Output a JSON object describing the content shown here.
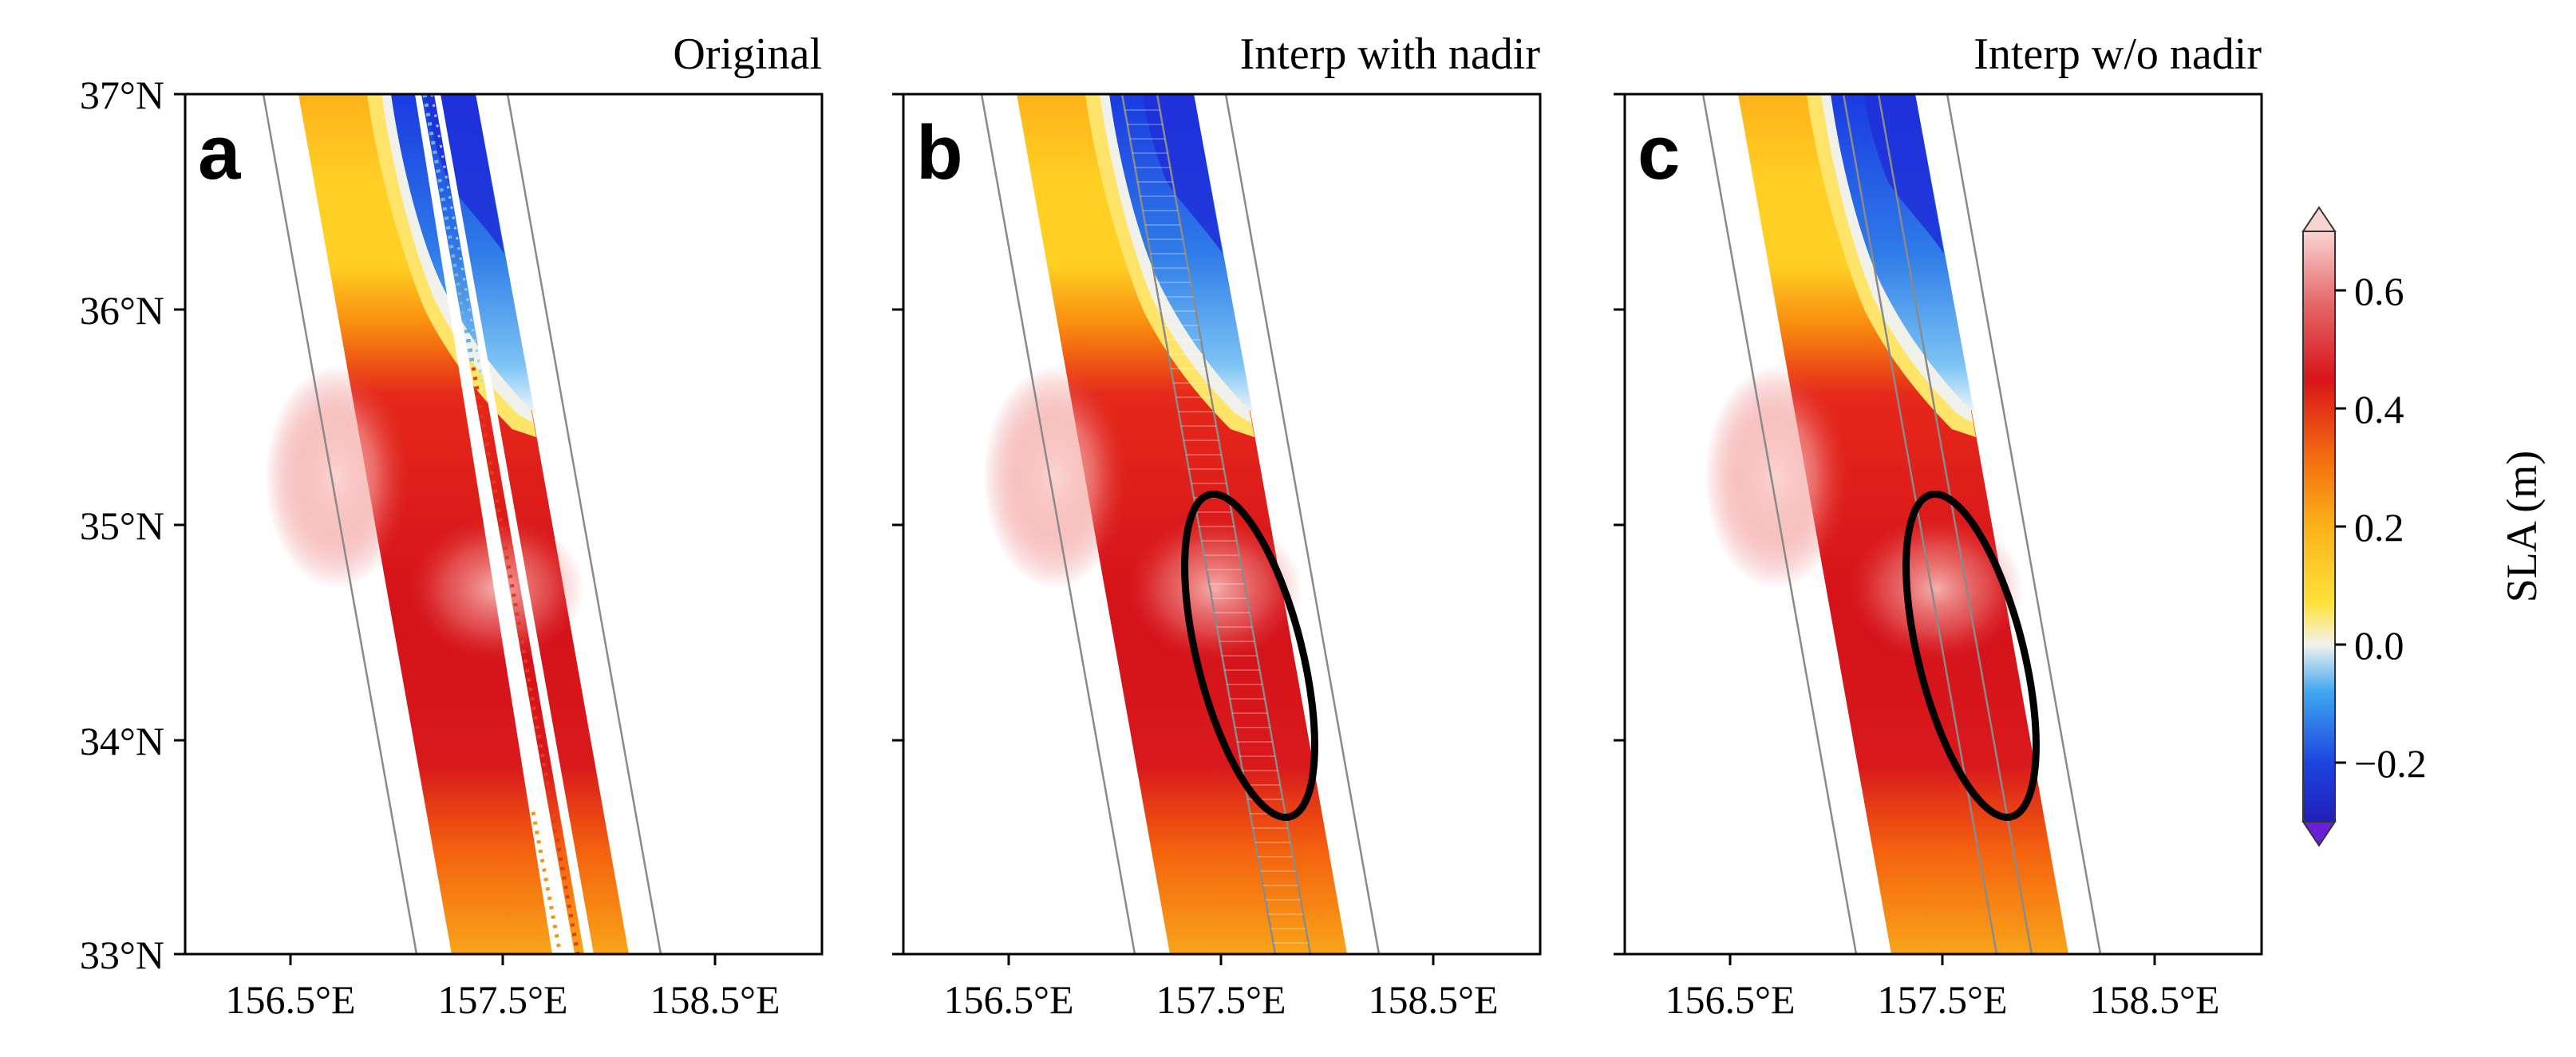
{
  "panels": [
    {
      "letter": "a",
      "title": "Original"
    },
    {
      "letter": "b",
      "title": "Interp with nadir"
    },
    {
      "letter": "c",
      "title": "Interp w/o nadir"
    }
  ],
  "axes": {
    "lat_ticks": [
      "37°N",
      "36°N",
      "35°N",
      "34°N",
      "33°N"
    ],
    "lon_ticks": [
      "156.5°E",
      "157.5°E",
      "158.5°E"
    ]
  },
  "colorbar": {
    "label": "SLA (m)",
    "ticks": [
      "0.6",
      "0.4",
      "0.2",
      "0.0",
      "−0.2"
    ],
    "range": [
      -0.3,
      0.7
    ]
  },
  "colors": {
    "deep_blue": "#1626d6",
    "blue": "#3c9bf0",
    "pale": "#f4f4f0",
    "yellow": "#ffd21e",
    "orange": "#f98a0e",
    "red": "#d80d12",
    "pink": "#f6b6b4"
  }
}
